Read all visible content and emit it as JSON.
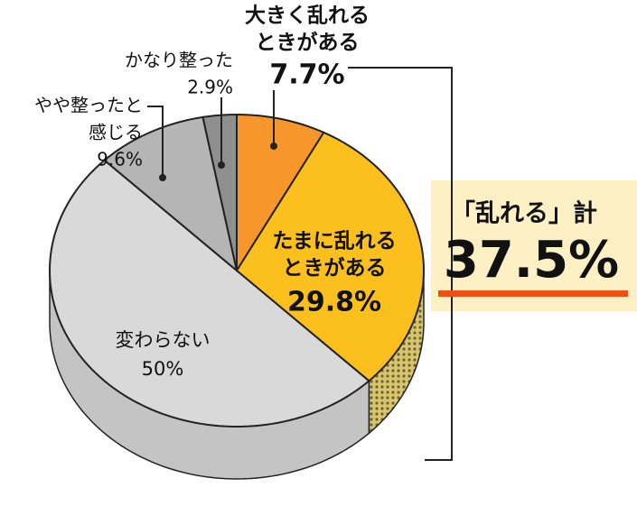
{
  "chart_data": {
    "type": "pie",
    "categories": [
      [
        "大きく乱れる",
        "ときがある"
      ],
      [
        "たまに乱れる",
        "ときがある"
      ],
      [
        "変わらない"
      ],
      [
        "やや整ったと",
        "感じる"
      ],
      [
        "かなり整った"
      ]
    ],
    "values": [
      7.7,
      29.8,
      50,
      9.6,
      2.9
    ],
    "value_labels": [
      "7.7%",
      "29.8%",
      "50%",
      "9.6%",
      "2.9%"
    ],
    "colors": [
      "#f7962b",
      "#fbc01e",
      "#d9d9d9",
      "#b5b5b5",
      "#8f8f8f"
    ],
    "total": {
      "label": "「乱れる」計",
      "value": 37.5,
      "value_label": "37.5%",
      "color": "#f04e12"
    }
  }
}
